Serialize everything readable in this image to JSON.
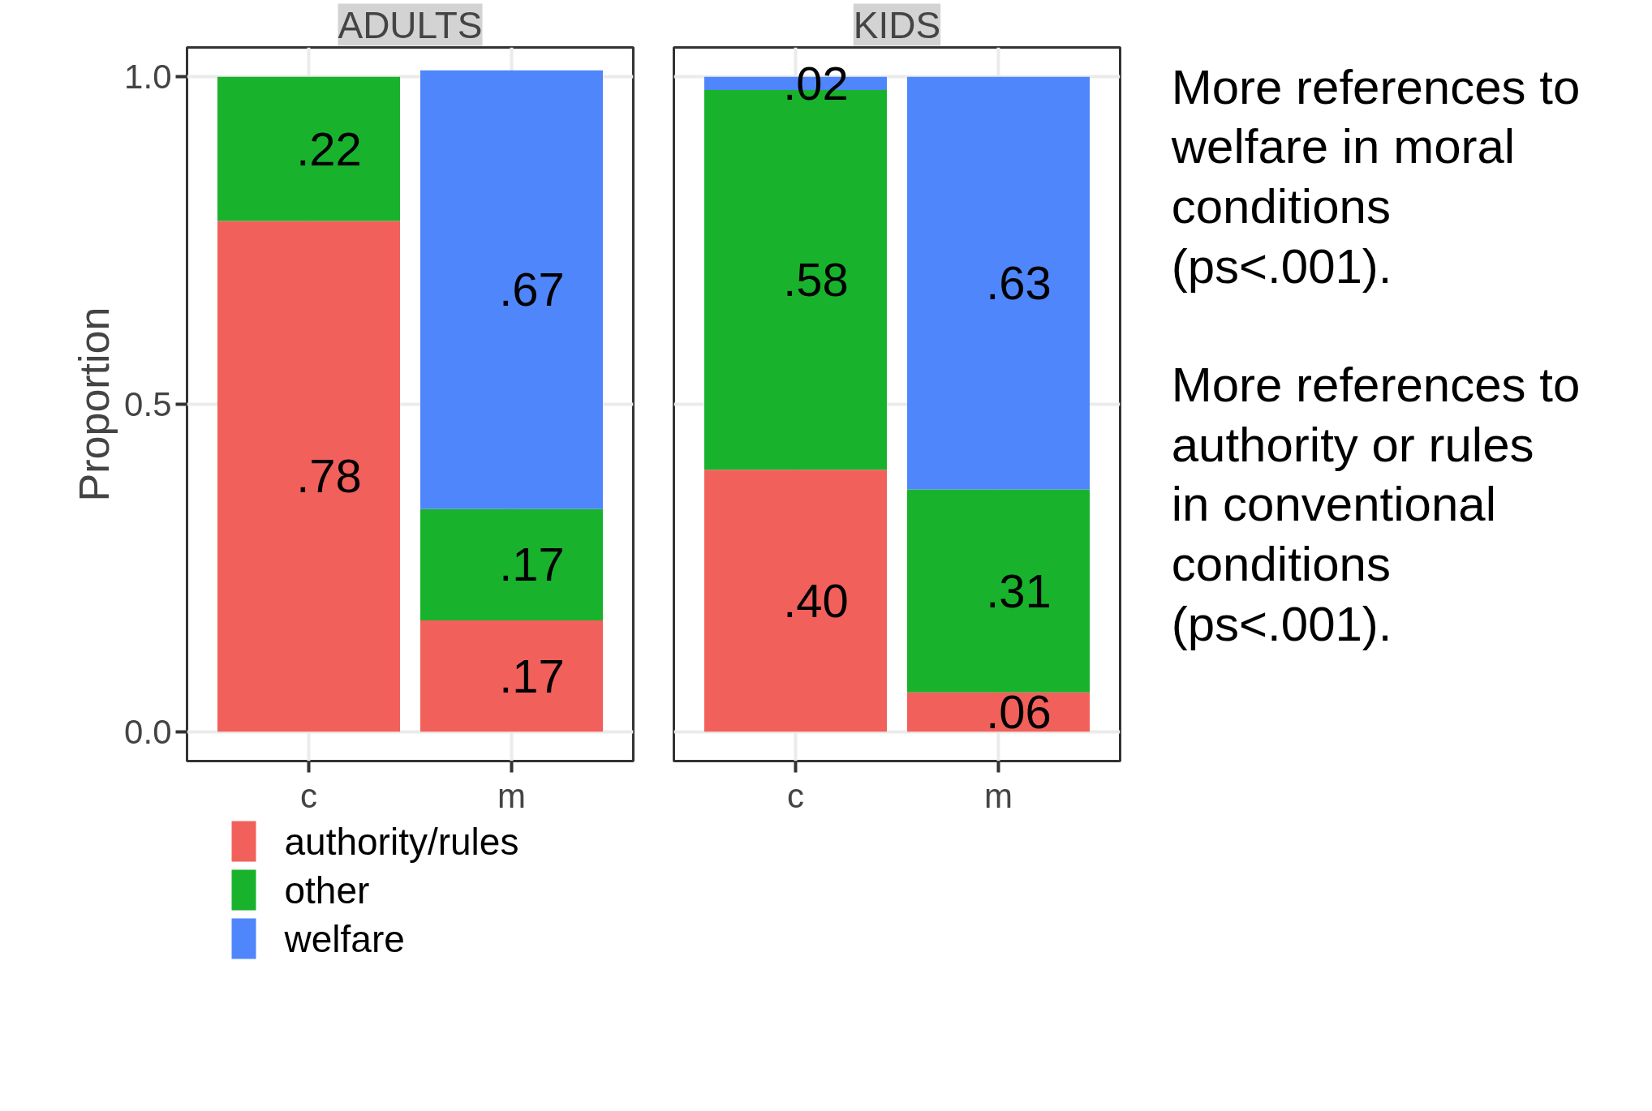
{
  "chart_data": [
    {
      "type": "bar",
      "title": "ADULTS",
      "ylabel": "Proportion",
      "categories": [
        "c",
        "m"
      ],
      "stacked": true,
      "ylim": [
        -0.045,
        1.045
      ],
      "yticks": [
        {
          "value": 0,
          "label": "0.0"
        },
        {
          "value": 0.5,
          "label": "0.5"
        },
        {
          "value": 1,
          "label": "1.0"
        }
      ],
      "grid": true,
      "legend": "bottom",
      "series": [
        {
          "name": "authority/rules",
          "color": "#f2605b",
          "values": [
            0.78,
            0.17
          ],
          "value_labels": [
            ".78",
            ".17"
          ]
        },
        {
          "name": "other",
          "color": "#19b22c",
          "values": [
            0.22,
            0.17
          ],
          "value_labels": [
            ".22",
            ".17"
          ]
        },
        {
          "name": "welfare",
          "color": "#4f86fb",
          "values": [
            0,
            0.67
          ],
          "value_labels": [
            null,
            ".67"
          ]
        }
      ]
    },
    {
      "type": "bar",
      "title": "KIDS",
      "categories": [
        "c",
        "m"
      ],
      "stacked": true,
      "ylim": [
        -0.045,
        1.045
      ],
      "yticks": [
        0,
        0.5,
        1
      ],
      "grid": true,
      "tick_labels": "x",
      "series": [
        {
          "name": "authority/rules",
          "color": "#f2605b",
          "values": [
            0.4,
            0.06
          ],
          "value_labels": [
            ".40",
            ".06"
          ]
        },
        {
          "name": "other",
          "color": "#19b22c",
          "values": [
            0.58,
            0.31
          ],
          "value_labels": [
            ".58",
            ".31"
          ]
        },
        {
          "name": "welfare",
          "color": "#4f86fb",
          "values": [
            0.02,
            0.63
          ],
          "value_labels": [
            ".02",
            ".63"
          ]
        }
      ]
    },
    {
      "type": "other",
      "annotations": [
        "More references to welfare in moral conditions (ps<.001).",
        "More references to authority or rules in conventional conditions (ps<.001)."
      ]
    }
  ]
}
